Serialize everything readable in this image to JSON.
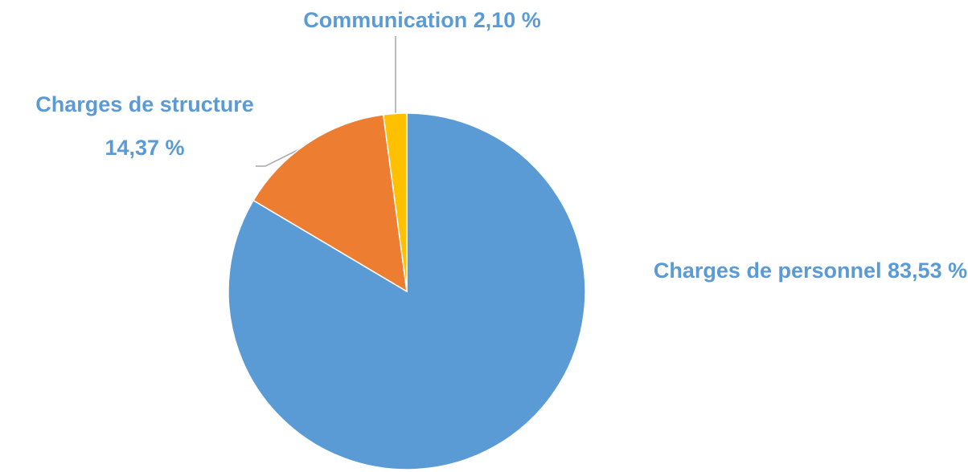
{
  "chart_data": {
    "type": "pie",
    "categories": [
      "Charges de personnel",
      "Charges de structure",
      "Communication"
    ],
    "values": [
      83.53,
      14.37,
      2.1
    ],
    "value_labels": [
      "83,53 %",
      "14,37 %",
      "2,10 %"
    ],
    "colors": [
      "#5b9bd5",
      "#ed7d31",
      "#ffc000"
    ]
  }
}
